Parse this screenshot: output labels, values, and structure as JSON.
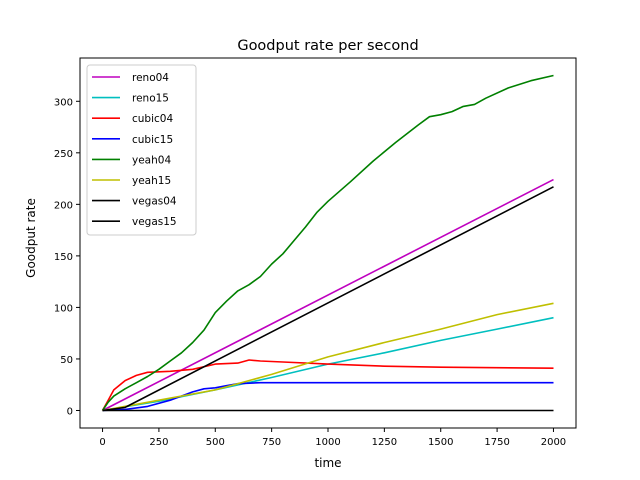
{
  "chart_data": {
    "type": "line",
    "title": "Goodput rate per second",
    "xlabel": "time",
    "ylabel": "Goodput rate",
    "xlim": [
      -100,
      2100
    ],
    "ylim": [
      -17,
      342
    ],
    "xticks": [
      0,
      250,
      500,
      750,
      1000,
      1250,
      1500,
      1750,
      2000
    ],
    "yticks": [
      0,
      50,
      100,
      150,
      200,
      250,
      300
    ],
    "grid": false,
    "legend_position": "top-left",
    "series": [
      {
        "name": "reno04",
        "color": "#bf00bf",
        "points": [
          [
            0,
            0
          ],
          [
            2000,
            224
          ]
        ]
      },
      {
        "name": "reno15",
        "color": "#00bfbf",
        "points": [
          [
            0,
            0
          ],
          [
            250,
            9
          ],
          [
            500,
            20
          ],
          [
            750,
            32
          ],
          [
            1000,
            45
          ],
          [
            1250,
            56
          ],
          [
            1500,
            68
          ],
          [
            1750,
            79
          ],
          [
            2000,
            90
          ]
        ]
      },
      {
        "name": "cubic04",
        "color": "#ff0000",
        "points": [
          [
            0,
            0
          ],
          [
            25,
            10
          ],
          [
            50,
            20
          ],
          [
            100,
            29
          ],
          [
            150,
            34
          ],
          [
            200,
            37
          ],
          [
            300,
            38
          ],
          [
            400,
            40
          ],
          [
            500,
            45
          ],
          [
            600,
            46
          ],
          [
            650,
            49
          ],
          [
            700,
            48
          ],
          [
            800,
            47
          ],
          [
            1000,
            45
          ],
          [
            1250,
            43
          ],
          [
            1500,
            42
          ],
          [
            2000,
            41
          ]
        ]
      },
      {
        "name": "cubic15",
        "color": "#0000ff",
        "points": [
          [
            0,
            0
          ],
          [
            100,
            1
          ],
          [
            200,
            4
          ],
          [
            300,
            10
          ],
          [
            400,
            18
          ],
          [
            450,
            21
          ],
          [
            500,
            22
          ],
          [
            550,
            24
          ],
          [
            600,
            26
          ],
          [
            700,
            27
          ],
          [
            800,
            27
          ],
          [
            2000,
            27
          ]
        ]
      },
      {
        "name": "yeah04",
        "color": "#008000",
        "points": [
          [
            0,
            0
          ],
          [
            25,
            8
          ],
          [
            50,
            14
          ],
          [
            100,
            21
          ],
          [
            150,
            27
          ],
          [
            200,
            33
          ],
          [
            250,
            40
          ],
          [
            300,
            48
          ],
          [
            350,
            56
          ],
          [
            400,
            66
          ],
          [
            450,
            78
          ],
          [
            500,
            95
          ],
          [
            550,
            106
          ],
          [
            600,
            116
          ],
          [
            650,
            122
          ],
          [
            700,
            130
          ],
          [
            750,
            142
          ],
          [
            800,
            152
          ],
          [
            850,
            165
          ],
          [
            900,
            178
          ],
          [
            950,
            192
          ],
          [
            1000,
            203
          ],
          [
            1100,
            222
          ],
          [
            1200,
            242
          ],
          [
            1300,
            260
          ],
          [
            1400,
            277
          ],
          [
            1450,
            285
          ],
          [
            1500,
            287
          ],
          [
            1550,
            290
          ],
          [
            1600,
            295
          ],
          [
            1650,
            297
          ],
          [
            1700,
            303
          ],
          [
            1800,
            313
          ],
          [
            1900,
            320
          ],
          [
            2000,
            325
          ]
        ]
      },
      {
        "name": "yeah15",
        "color": "#bfbf00",
        "points": [
          [
            0,
            0
          ],
          [
            250,
            10
          ],
          [
            500,
            20
          ],
          [
            750,
            35
          ],
          [
            1000,
            52
          ],
          [
            1250,
            66
          ],
          [
            1500,
            79
          ],
          [
            1750,
            93
          ],
          [
            2000,
            104
          ]
        ]
      },
      {
        "name": "vegas04",
        "color": "#000000",
        "points": [
          [
            0,
            0
          ],
          [
            100,
            3
          ],
          [
            2000,
            217
          ]
        ]
      },
      {
        "name": "vegas15",
        "color": "#000000",
        "points": [
          [
            0,
            0
          ],
          [
            2000,
            0
          ]
        ]
      }
    ]
  }
}
